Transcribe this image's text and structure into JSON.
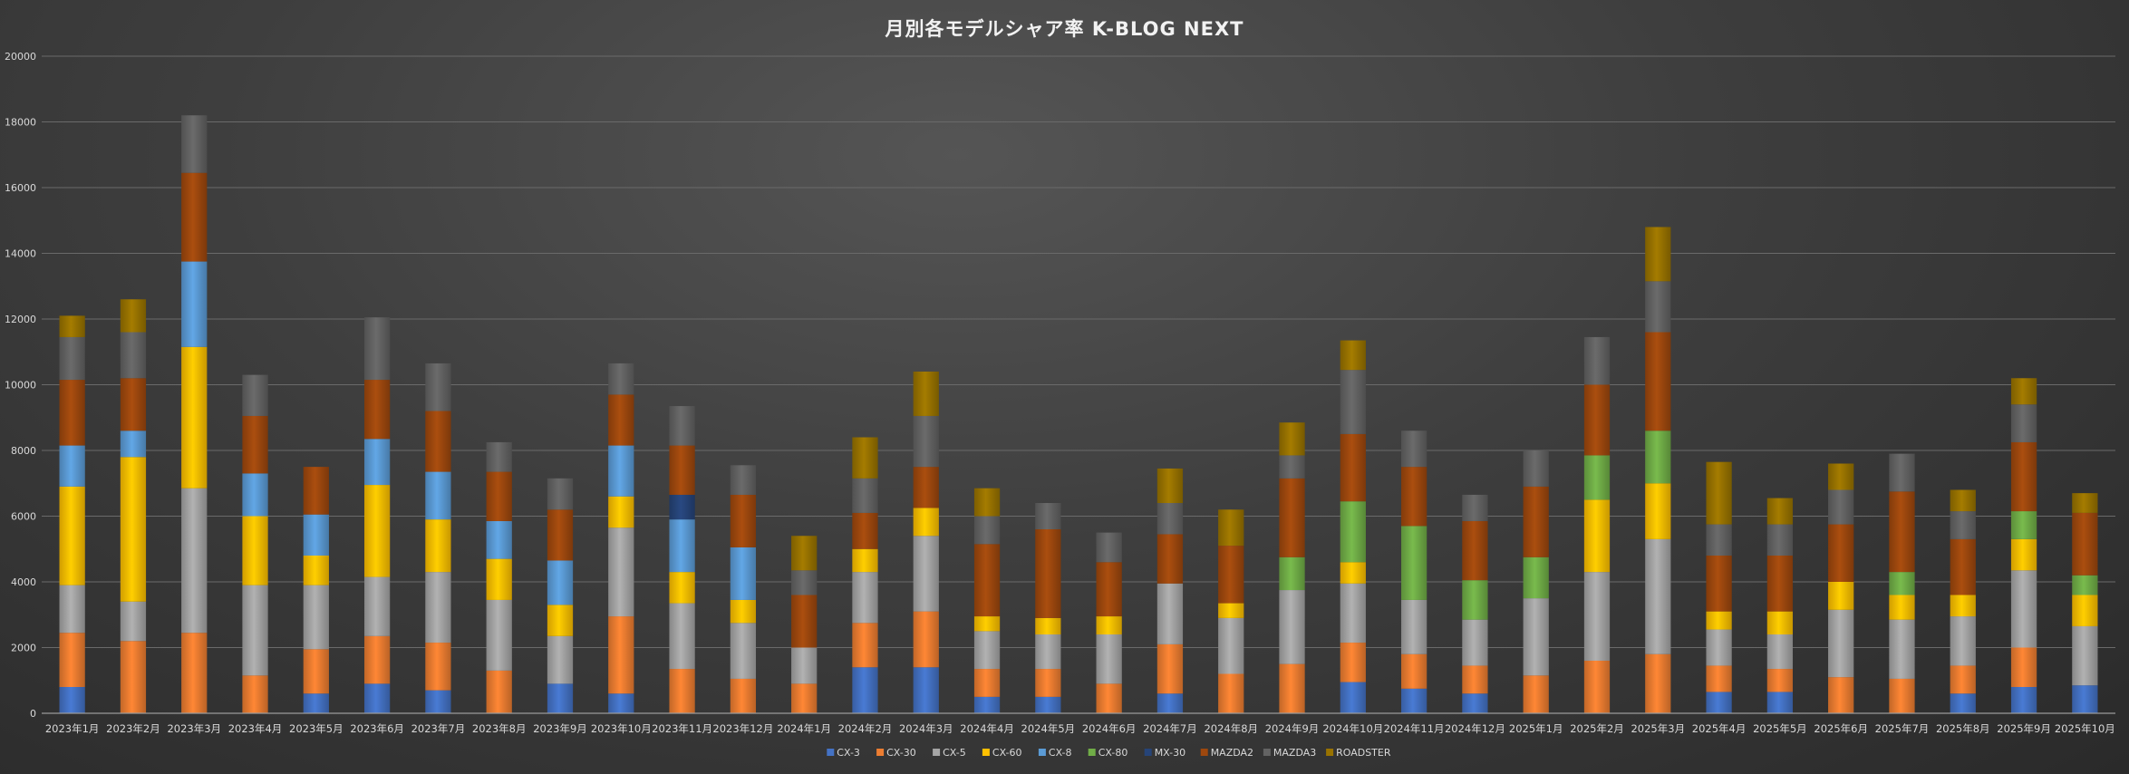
{
  "chart_data": {
    "type": "bar",
    "stacked": true,
    "title": "月別各モデルシャア率 K-BLOG NEXT",
    "ylim": [
      0,
      20000
    ],
    "yticks": [
      0,
      2000,
      4000,
      6000,
      8000,
      10000,
      12000,
      14000,
      16000,
      18000,
      20000
    ],
    "grid": true,
    "legend_position": "bottom",
    "categories": [
      "2023年1月",
      "2023年2月",
      "2023年3月",
      "2023年4月",
      "2023年5月",
      "2023年6月",
      "2023年7月",
      "2023年8月",
      "2023年9月",
      "2023年10月",
      "2023年11月",
      "2023年12月",
      "2024年1月",
      "2024年2月",
      "2024年3月",
      "2024年4月",
      "2024年5月",
      "2024年6月",
      "2024年7月",
      "2024年8月",
      "2024年9月",
      "2024年10月",
      "2024年11月",
      "2024年12月",
      "2025年1月",
      "2025年2月",
      "2025年3月",
      "2025年4月",
      "2025年5月",
      "2025年6月",
      "2025年7月",
      "2025年8月",
      "2025年9月",
      "2025年10月"
    ],
    "series": [
      {
        "name": "CX-3",
        "color": "#4472c4",
        "values": [
          800,
          0,
          0,
          0,
          600,
          900,
          700,
          0,
          900,
          600,
          0,
          0,
          0,
          1400,
          1400,
          500,
          500,
          0,
          600,
          0,
          0,
          950,
          750,
          600,
          0,
          0,
          0,
          650,
          650,
          0,
          0,
          600,
          800,
          850
        ]
      },
      {
        "name": "CX-30",
        "color": "#ed7d31",
        "values": [
          1650,
          2200,
          2450,
          1150,
          1350,
          1450,
          1450,
          1300,
          0,
          2350,
          1350,
          1050,
          900,
          1350,
          1700,
          850,
          850,
          900,
          1500,
          1200,
          1500,
          1200,
          1050,
          850,
          1150,
          1600,
          1800,
          800,
          700,
          1100,
          1050,
          850,
          1200,
          0
        ]
      },
      {
        "name": "CX-5",
        "color": "#a5a5a5",
        "values": [
          1450,
          1200,
          4400,
          2750,
          1950,
          1800,
          2150,
          2150,
          1450,
          2700,
          2000,
          1700,
          1100,
          1550,
          2300,
          1150,
          1050,
          1500,
          1850,
          1700,
          2250,
          1800,
          1650,
          1400,
          2350,
          2700,
          3500,
          1100,
          1050,
          2050,
          1800,
          1500,
          2350,
          1800
        ]
      },
      {
        "name": "CX-60",
        "color": "#ffc000",
        "values": [
          3000,
          4400,
          4300,
          2100,
          900,
          2800,
          1600,
          1250,
          950,
          950,
          950,
          700,
          0,
          700,
          850,
          450,
          500,
          550,
          0,
          450,
          0,
          650,
          0,
          0,
          0,
          2200,
          1700,
          550,
          700,
          850,
          750,
          650,
          950,
          950
        ]
      },
      {
        "name": "CX-8",
        "color": "#5b9bd5",
        "values": [
          1250,
          800,
          2600,
          1300,
          1250,
          1400,
          1450,
          1150,
          1350,
          1550,
          1600,
          1600,
          0,
          0,
          0,
          0,
          0,
          0,
          0,
          0,
          0,
          0,
          0,
          0,
          0,
          0,
          0,
          0,
          0,
          0,
          0,
          0,
          0,
          0
        ]
      },
      {
        "name": "CX-80",
        "color": "#70ad47",
        "values": [
          0,
          0,
          0,
          0,
          0,
          0,
          0,
          0,
          0,
          0,
          0,
          0,
          0,
          0,
          0,
          0,
          0,
          0,
          0,
          0,
          1000,
          1850,
          2250,
          1200,
          1250,
          1350,
          1600,
          0,
          0,
          0,
          700,
          0,
          850,
          600
        ]
      },
      {
        "name": "MX-30",
        "color": "#264478",
        "values": [
          0,
          0,
          0,
          0,
          0,
          0,
          0,
          0,
          0,
          0,
          750,
          0,
          0,
          0,
          0,
          0,
          0,
          0,
          0,
          0,
          0,
          0,
          0,
          0,
          0,
          0,
          0,
          0,
          0,
          0,
          0,
          0,
          0,
          0
        ]
      },
      {
        "name": "MAZDA2",
        "color": "#9e480e",
        "values": [
          2000,
          1600,
          2700,
          1750,
          1450,
          1800,
          1850,
          1500,
          1550,
          1550,
          1500,
          1600,
          1600,
          1100,
          1250,
          2200,
          2700,
          1650,
          1500,
          1750,
          2400,
          2050,
          1800,
          1800,
          2150,
          2150,
          3000,
          1700,
          1700,
          1750,
          2450,
          1700,
          2100,
          1900
        ]
      },
      {
        "name": "MAZDA3",
        "color": "#636363",
        "values": [
          1300,
          1400,
          1750,
          1250,
          0,
          1900,
          1450,
          900,
          950,
          950,
          1200,
          900,
          750,
          1050,
          1550,
          850,
          800,
          900,
          950,
          0,
          700,
          1950,
          1100,
          800,
          1100,
          1450,
          1550,
          950,
          950,
          1050,
          1150,
          850,
          1150,
          0
        ]
      },
      {
        "name": "ROADSTER",
        "color": "#997300",
        "values": [
          650,
          1000,
          0,
          0,
          0,
          0,
          0,
          0,
          0,
          0,
          0,
          0,
          1050,
          1250,
          1350,
          850,
          0,
          0,
          1050,
          1100,
          1000,
          900,
          0,
          0,
          0,
          0,
          1650,
          1900,
          800,
          800,
          0,
          650,
          800,
          600
        ]
      }
    ]
  }
}
